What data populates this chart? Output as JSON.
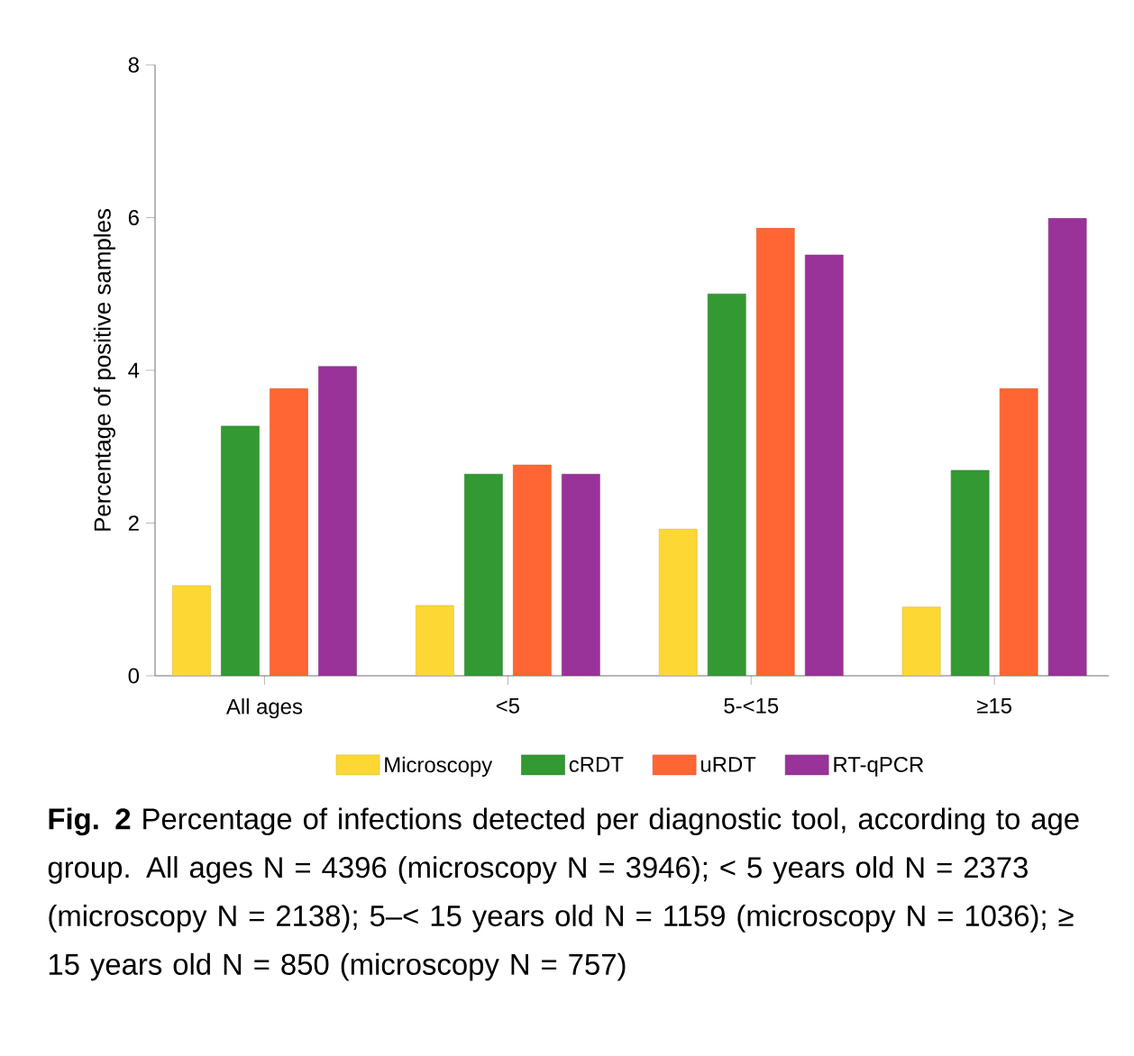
{
  "chart_data": {
    "type": "bar",
    "ylabel": "Percentage of positive samples",
    "categories": [
      "All ages",
      "<5",
      "5-<15",
      "≥15"
    ],
    "series": [
      {
        "name": "Microscopy",
        "color": "#fdd835",
        "values": [
          1.18,
          0.92,
          1.92,
          0.9
        ]
      },
      {
        "name": "cRDT",
        "color": "#339933",
        "values": [
          3.27,
          2.64,
          5.0,
          2.69
        ]
      },
      {
        "name": "uRDT",
        "color": "#ff6633",
        "values": [
          3.76,
          2.76,
          5.86,
          3.76
        ]
      },
      {
        "name": "RT-qPCR",
        "color": "#993399",
        "values": [
          4.05,
          2.64,
          5.51,
          5.99
        ]
      }
    ],
    "ylim": [
      0,
      8
    ],
    "yticks": [
      0,
      2,
      4,
      6,
      8
    ],
    "grid": false,
    "legend": "bottom",
    "annotations": [
      "**Fig. 2**  Percentage of infections detected per diagnostic tool, according to age group. All ages N = 4396 (microscopy N = 3946); < 5 years old N = 2373 (microscopy N = 2138); 5–< 15 years old N = 1159 (microscopy N = 1036); ≥ 15 years old N = 850 (microscopy N = 757)"
    ]
  }
}
